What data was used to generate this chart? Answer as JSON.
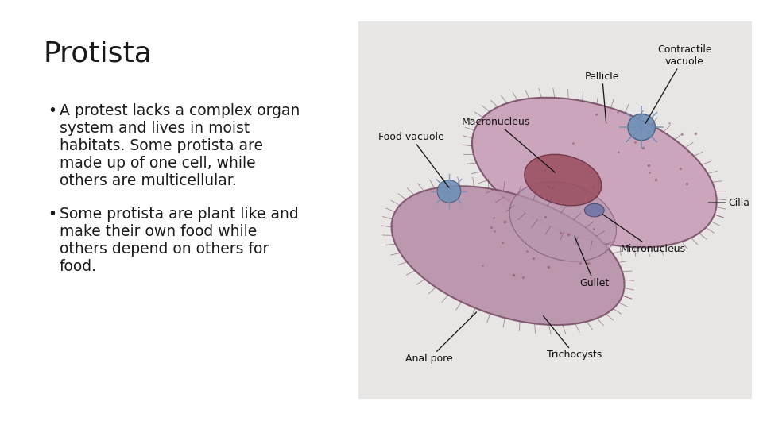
{
  "title": "Protista",
  "background_color": "#ffffff",
  "title_fontsize": 26,
  "title_color": "#1a1a1a",
  "bullet_points": [
    "A protest lacks a complex organ\nsystem and lives in moist\nhabitats. Some protista are\nmade up of one cell, while\nothers are multicellular.",
    "Some protista are plant like and\nmake their own food while\nothers depend on others for\nfood."
  ],
  "bullet_fontsize": 13.5,
  "bullet_color": "#1a1a1a",
  "cell_body_color": "#c9a0b8",
  "cell_body_edge": "#7a5068",
  "cell_body2_color": "#b890a8",
  "macro_color": "#9a5060",
  "macro_edge": "#6a3040",
  "gullet_color": "#c0a0b4",
  "cv_color": "#7090b8",
  "cv_edge": "#405878",
  "fv_color": "#7090b8",
  "fv_edge": "#405878",
  "micro_color": "#7878a8",
  "micro_edge": "#484868",
  "dot_color": "#8a5060",
  "cilia_color": "#7a5068",
  "label_fontsize": 9,
  "label_color": "#111111",
  "arrow_color": "#111111",
  "diagram_bg": "#e8e6e4"
}
